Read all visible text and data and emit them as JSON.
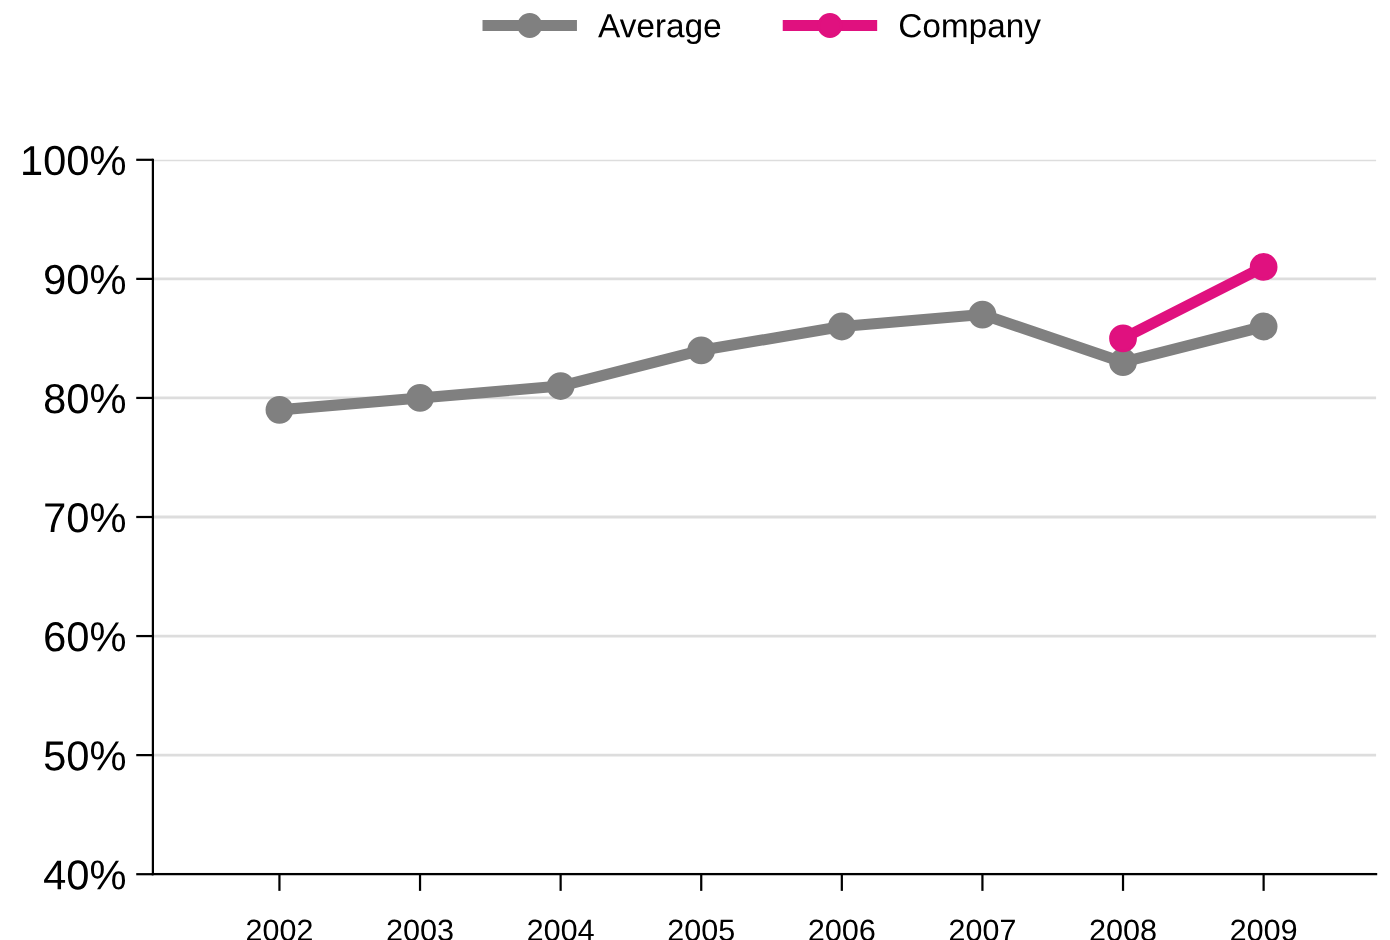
{
  "chart_data": {
    "type": "line",
    "categories": [
      "2002",
      "2003",
      "2004",
      "2005",
      "2006",
      "2007",
      "2008",
      "2009"
    ],
    "series": [
      {
        "name": "Average",
        "color": "#808080",
        "values": [
          79,
          80,
          81,
          84,
          86,
          87,
          83,
          86
        ]
      },
      {
        "name": "Company",
        "color": "#e0117f",
        "values": [
          null,
          null,
          null,
          null,
          null,
          null,
          85,
          91
        ]
      }
    ],
    "ylim": [
      40,
      100
    ],
    "yticks": [
      {
        "value": 40,
        "label": "40%"
      },
      {
        "value": 50,
        "label": "50%"
      },
      {
        "value": 60,
        "label": "60%"
      },
      {
        "value": 70,
        "label": "70%"
      },
      {
        "value": 80,
        "label": "80%"
      },
      {
        "value": 90,
        "label": "90%"
      },
      {
        "value": 100,
        "label": "100%"
      }
    ],
    "grid": "y",
    "legend": "top",
    "marker": "circle",
    "line_style": "solid"
  }
}
